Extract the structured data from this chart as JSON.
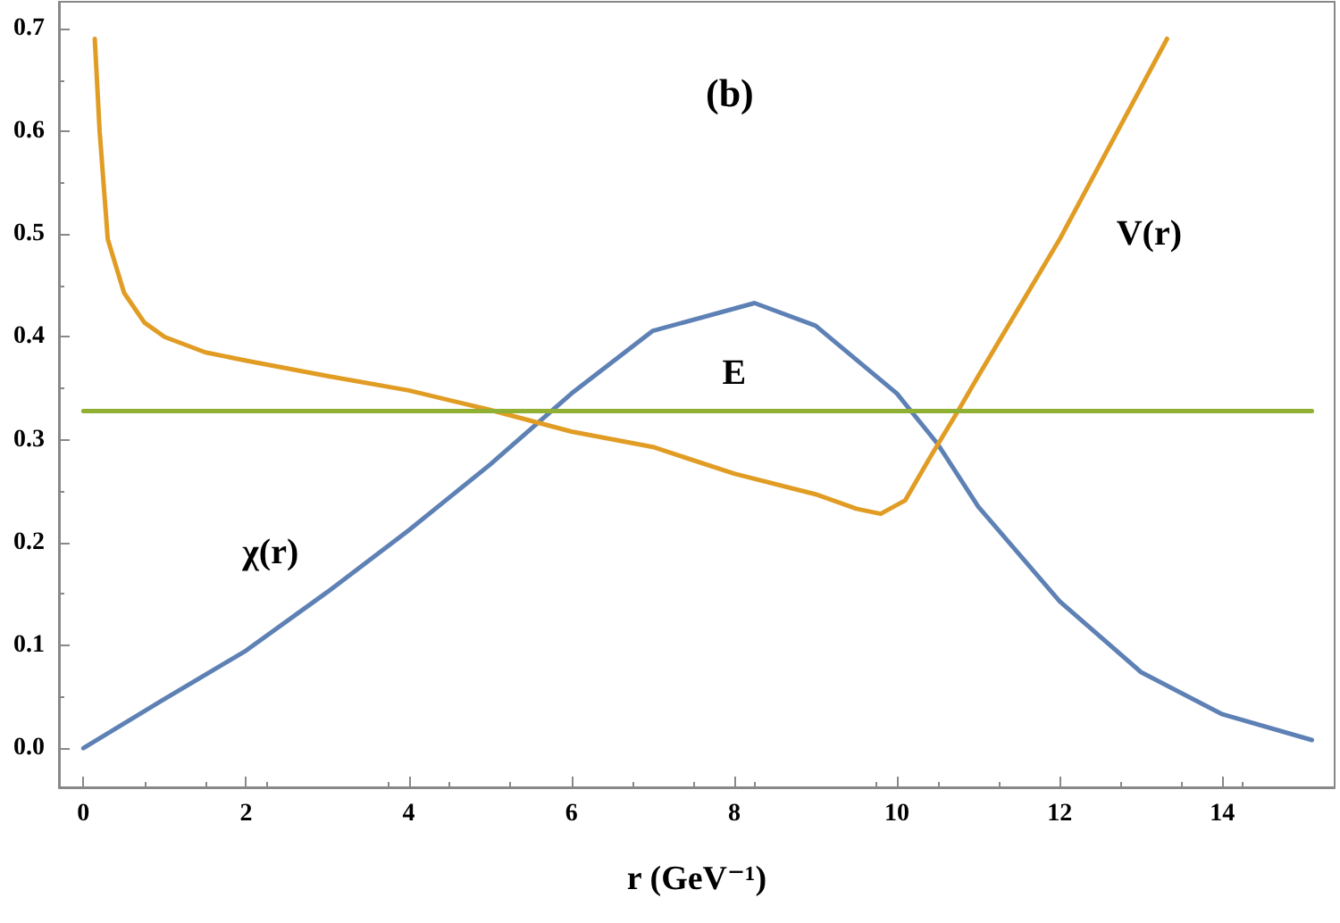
{
  "chart_data": {
    "type": "line",
    "title": "(b)",
    "xlabel": "r (GeV⁻¹)",
    "xlim": [
      -0.3,
      15.38
    ],
    "xticks": [
      0,
      2,
      4,
      6,
      8,
      10,
      12,
      14
    ],
    "ylim": [
      -0.038,
      0.726
    ],
    "yticks": [
      {
        "value": 0,
        "label": "0.0"
      },
      0.1,
      0.2,
      0.3,
      0.4,
      0.5,
      0.6,
      0.7
    ],
    "grid": false,
    "legend": false,
    "marker": "none",
    "line_style": "solid",
    "series": [
      {
        "name": "χ(r)",
        "color": "#5e81b5",
        "x": [
          0,
          1,
          2,
          3,
          4,
          5,
          6,
          7,
          8.25,
          9,
          10,
          10.5,
          11,
          12,
          13,
          14,
          15.1
        ],
        "values": [
          0,
          0.048,
          0.095,
          0.152,
          0.212,
          0.276,
          0.345,
          0.406,
          0.433,
          0.411,
          0.345,
          0.296,
          0.235,
          0.143,
          0.074,
          0.033,
          0.008
        ]
      },
      {
        "name": "V(r)",
        "color": "#e19c24",
        "x": [
          0.14,
          0.2,
          0.3,
          0.5,
          0.75,
          1,
          1.5,
          2,
          3,
          4,
          5,
          6,
          7,
          8,
          9,
          9.5,
          9.8,
          10.1,
          10.4,
          10.75,
          11,
          12,
          13.32
        ],
        "values": [
          0.69,
          0.6,
          0.495,
          0.443,
          0.414,
          0.4,
          0.385,
          0.377,
          0.362,
          0.348,
          0.329,
          0.308,
          0.293,
          0.267,
          0.247,
          0.233,
          0.228,
          0.241,
          0.282,
          0.328,
          0.362,
          0.495,
          0.69
        ]
      },
      {
        "name": "E",
        "color": "#8fb032",
        "x": [
          0,
          15.1
        ],
        "values": [
          0.328,
          0.328
        ]
      }
    ]
  }
}
